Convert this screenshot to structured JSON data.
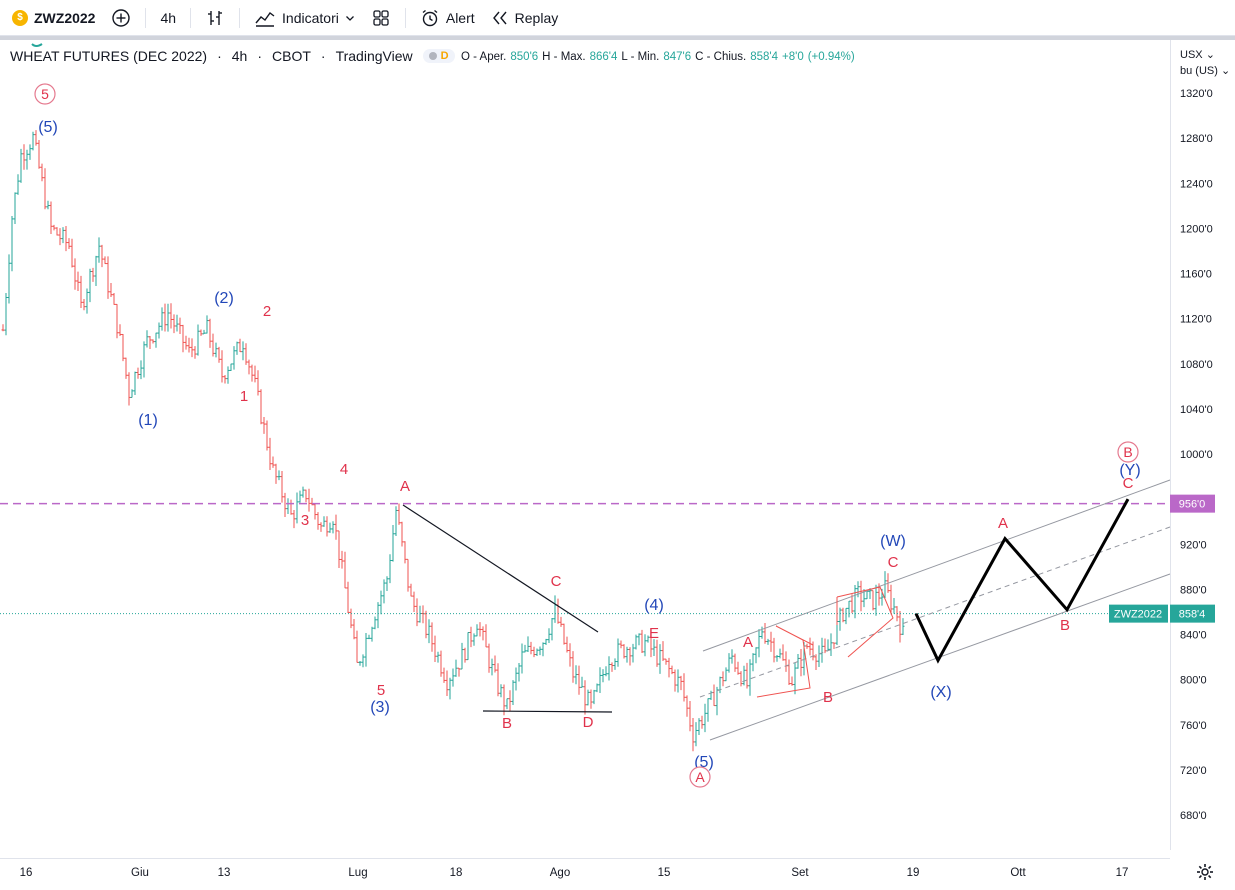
{
  "toolbar": {
    "symbol": "ZWZ2022",
    "interval": "4h",
    "indicators_label": "Indicatori",
    "alert_label": "Alert",
    "replay_label": "Replay"
  },
  "legend": {
    "title": "WHEAT FUTURES (DEC 2022)",
    "interval": "4h",
    "exchange": "CBOT",
    "source": "TradingView",
    "badge": "D",
    "open_label": "O - Aper.",
    "open": "850'6",
    "high_label": "H - Max.",
    "high": "866'4",
    "low_label": "L - Min.",
    "low": "847'6",
    "close_label": "C - Chius.",
    "close": "858'4",
    "change": "+8'0",
    "change_pct": "(+0.94%)"
  },
  "axis": {
    "currency": "USX",
    "unit": "bu (US)",
    "price_ticks": [
      "1320'0",
      "1280'0",
      "1240'0",
      "1200'0",
      "1160'0",
      "1120'0",
      "1080'0",
      "1040'0",
      "1000'0",
      "960'0",
      "920'0",
      "880'0",
      "840'0",
      "800'0",
      "760'0",
      "720'0",
      "680'0"
    ],
    "time_ticks": [
      "16",
      "Giu",
      "13",
      "Lug",
      "18",
      "Ago",
      "15",
      "Set",
      "19",
      "Ott",
      "17"
    ],
    "price_tag": "956'0",
    "symbol_tag": "ZWZ2022",
    "last_price_tag": "858'4"
  },
  "chart_data": {
    "type": "bar",
    "description_series": "OHLC price bars, 4h",
    "horizontal_level": 956,
    "last_price": 858.5,
    "price_range": [
      660,
      1340
    ],
    "path": [
      {
        "t": 0,
        "p": 1110
      },
      {
        "t": 3,
        "p": 1210
      },
      {
        "t": 6,
        "p": 1265
      },
      {
        "t": 10,
        "p": 1280
      },
      {
        "t": 16,
        "p": 1200
      },
      {
        "t": 22,
        "p": 1185
      },
      {
        "t": 26,
        "p": 1130
      },
      {
        "t": 32,
        "p": 1185
      },
      {
        "t": 38,
        "p": 1115
      },
      {
        "t": 42,
        "p": 1055
      },
      {
        "t": 48,
        "p": 1100
      },
      {
        "t": 55,
        "p": 1125
      },
      {
        "t": 62,
        "p": 1090
      },
      {
        "t": 68,
        "p": 1110
      },
      {
        "t": 73,
        "p": 1070
      },
      {
        "t": 80,
        "p": 1100
      },
      {
        "t": 84,
        "p": 1060
      },
      {
        "t": 90,
        "p": 985
      },
      {
        "t": 96,
        "p": 945
      },
      {
        "t": 101,
        "p": 965
      },
      {
        "t": 106,
        "p": 935
      },
      {
        "t": 110,
        "p": 945
      },
      {
        "t": 114,
        "p": 880
      },
      {
        "t": 118,
        "p": 812
      },
      {
        "t": 124,
        "p": 860
      },
      {
        "t": 128,
        "p": 890
      },
      {
        "t": 131,
        "p": 950
      },
      {
        "t": 136,
        "p": 870
      },
      {
        "t": 142,
        "p": 840
      },
      {
        "t": 148,
        "p": 800
      },
      {
        "t": 153,
        "p": 820
      },
      {
        "t": 158,
        "p": 852
      },
      {
        "t": 164,
        "p": 800
      },
      {
        "t": 168,
        "p": 775
      },
      {
        "t": 173,
        "p": 820
      },
      {
        "t": 180,
        "p": 835
      },
      {
        "t": 184,
        "p": 860
      },
      {
        "t": 190,
        "p": 805
      },
      {
        "t": 196,
        "p": 775
      },
      {
        "t": 202,
        "p": 820
      },
      {
        "t": 209,
        "p": 830
      },
      {
        "t": 214,
        "p": 833
      },
      {
        "t": 220,
        "p": 815
      },
      {
        "t": 226,
        "p": 795
      },
      {
        "t": 230,
        "p": 752
      },
      {
        "t": 236,
        "p": 780
      },
      {
        "t": 243,
        "p": 820
      },
      {
        "t": 248,
        "p": 795
      },
      {
        "t": 253,
        "p": 845
      },
      {
        "t": 258,
        "p": 825
      },
      {
        "t": 263,
        "p": 800
      },
      {
        "t": 268,
        "p": 830
      },
      {
        "t": 274,
        "p": 820
      },
      {
        "t": 280,
        "p": 860
      },
      {
        "t": 285,
        "p": 875
      },
      {
        "t": 290,
        "p": 870
      },
      {
        "t": 294,
        "p": 880
      },
      {
        "t": 298,
        "p": 858
      },
      {
        "t": 300,
        "p": 840
      },
      {
        "t": 301,
        "p": 858.5
      }
    ],
    "projection": [
      {
        "label": "",
        "p": 858.5
      },
      {
        "label": "(X)",
        "p": 817
      },
      {
        "label": "A",
        "p": 925
      },
      {
        "label": "B",
        "p": 862
      },
      {
        "label": "C",
        "p": 960
      }
    ],
    "annotations": {
      "red_circled": [
        "5",
        "A",
        "B"
      ],
      "red": [
        "2",
        "1",
        "4",
        "3",
        "5",
        "A",
        "C",
        "B",
        "D",
        "E",
        "A",
        "B",
        "C",
        "A",
        "B",
        "C"
      ],
      "blue": [
        "(5)",
        "(2)",
        "(1)",
        "(3)",
        "(4)",
        "(5)",
        "(W)",
        "(X)",
        "(Y)"
      ]
    },
    "time_axis": [
      "16",
      "Giu",
      "13",
      "Lug",
      "18",
      "Ago",
      "15",
      "Set",
      "19",
      "Ott",
      "17"
    ]
  }
}
